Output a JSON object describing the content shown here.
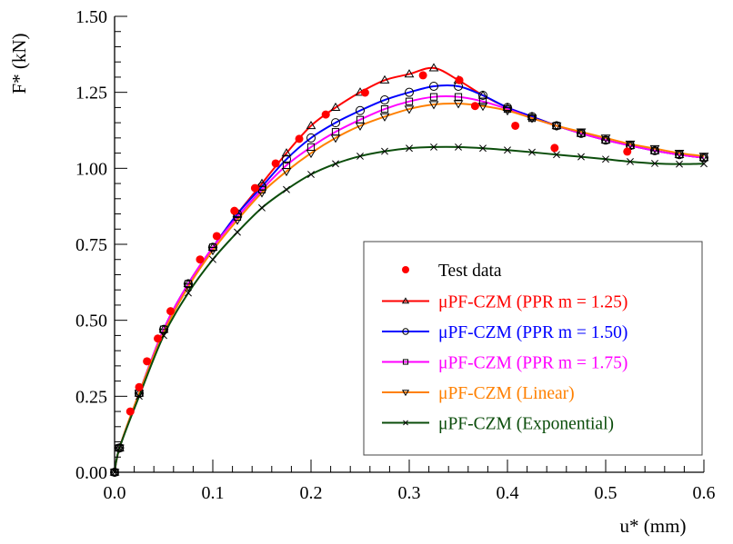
{
  "chart_data": {
    "type": "line",
    "title": "",
    "xlabel": "u* (mm)",
    "ylabel": "F* (kN)",
    "xlim": [
      0,
      0.6
    ],
    "ylim": [
      0,
      1.5
    ],
    "xticks": [
      "0.0",
      "0.1",
      "0.2",
      "0.3",
      "0.4",
      "0.5",
      "0.6"
    ],
    "yticks": [
      "0.00",
      "0.25",
      "0.50",
      "0.75",
      "1.00",
      "1.25",
      "1.50"
    ],
    "grid": false,
    "legend_position": "lower-right",
    "test_data": {
      "name": "Test data",
      "color": "#ff0000",
      "marker": "filled-circle",
      "x": [
        0.016,
        0.025,
        0.033,
        0.044,
        0.057,
        0.087,
        0.104,
        0.122,
        0.143,
        0.164,
        0.188,
        0.215,
        0.255,
        0.314,
        0.351,
        0.367,
        0.408,
        0.448,
        0.522
      ],
      "y": [
        0.2,
        0.28,
        0.365,
        0.44,
        0.53,
        0.7,
        0.777,
        0.86,
        0.935,
        1.016,
        1.097,
        1.177,
        1.249,
        1.306,
        1.29,
        1.205,
        1.14,
        1.067,
        1.055
      ]
    },
    "x": [
      0,
      0.005,
      0.025,
      0.05,
      0.075,
      0.1,
      0.125,
      0.15,
      0.175,
      0.2,
      0.225,
      0.25,
      0.275,
      0.3,
      0.325,
      0.35,
      0.375,
      0.4,
      0.425,
      0.45,
      0.475,
      0.5,
      0.525,
      0.55,
      0.575,
      0.6
    ],
    "series": [
      {
        "name": "μPF-CZM (PPR m = 1.25)",
        "color": "#ff0000",
        "marker": "triangle-up",
        "values": [
          0,
          0.08,
          0.26,
          0.47,
          0.62,
          0.74,
          0.85,
          0.95,
          1.05,
          1.14,
          1.2,
          1.25,
          1.29,
          1.31,
          1.33,
          1.29,
          1.24,
          1.2,
          1.17,
          1.14,
          1.115,
          1.093,
          1.075,
          1.058,
          1.045,
          1.035
        ]
      },
      {
        "name": "μPF-CZM (PPR m = 1.50)",
        "color": "#0000ff",
        "marker": "circle",
        "values": [
          0,
          0.08,
          0.26,
          0.47,
          0.62,
          0.74,
          0.85,
          0.94,
          1.03,
          1.1,
          1.15,
          1.19,
          1.225,
          1.25,
          1.27,
          1.27,
          1.24,
          1.2,
          1.17,
          1.14,
          1.115,
          1.093,
          1.075,
          1.058,
          1.045,
          1.035
        ]
      },
      {
        "name": "μPF-CZM (PPR m = 1.75)",
        "color": "#ff00ff",
        "marker": "square",
        "values": [
          0,
          0.08,
          0.26,
          0.47,
          0.62,
          0.74,
          0.84,
          0.93,
          1.01,
          1.07,
          1.12,
          1.16,
          1.195,
          1.22,
          1.235,
          1.235,
          1.22,
          1.195,
          1.165,
          1.14,
          1.115,
          1.093,
          1.075,
          1.058,
          1.045,
          1.035
        ]
      },
      {
        "name": "μPF-CZM (Linear)",
        "color": "#ff8000",
        "marker": "triangle-down",
        "values": [
          0,
          0.08,
          0.26,
          0.46,
          0.61,
          0.73,
          0.83,
          0.92,
          0.99,
          1.05,
          1.1,
          1.14,
          1.17,
          1.195,
          1.21,
          1.213,
          1.205,
          1.19,
          1.165,
          1.14,
          1.12,
          1.1,
          1.08,
          1.065,
          1.05,
          1.04
        ]
      },
      {
        "name": "μPF-CZM (Exponential)",
        "color": "#0b4d0b",
        "marker": "cross",
        "values": [
          0,
          0.08,
          0.25,
          0.45,
          0.59,
          0.7,
          0.79,
          0.87,
          0.93,
          0.98,
          1.015,
          1.04,
          1.056,
          1.066,
          1.07,
          1.07,
          1.066,
          1.06,
          1.053,
          1.045,
          1.038,
          1.03,
          1.022,
          1.016,
          1.014,
          1.015
        ]
      }
    ]
  }
}
